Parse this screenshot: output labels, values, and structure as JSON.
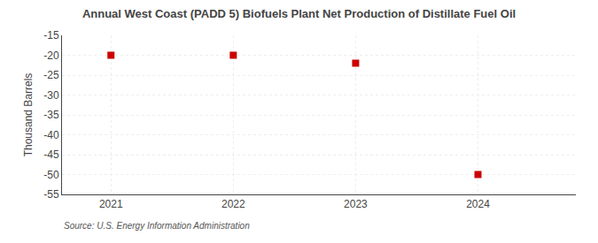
{
  "chart_data": {
    "type": "scatter",
    "title": "Annual West Coast (PADD 5) Biofuels Plant Net Production of Distillate Fuel Oil",
    "ylabel": "Thousand Barrels",
    "source": "Source: U.S. Energy Information Administration",
    "x": [
      2021,
      2022,
      2023,
      2024
    ],
    "values": [
      -20,
      -20,
      -22,
      -50
    ],
    "color": "#cc0000",
    "marker": "square",
    "xlim": [
      2020.6,
      2024.8
    ],
    "xticks": [
      2021,
      2022,
      2023,
      2024
    ],
    "ylim": [
      -55,
      -15
    ],
    "yticks": [
      -15,
      -20,
      -25,
      -30,
      -35,
      -40,
      -45,
      -50,
      -55
    ],
    "grid": true
  }
}
